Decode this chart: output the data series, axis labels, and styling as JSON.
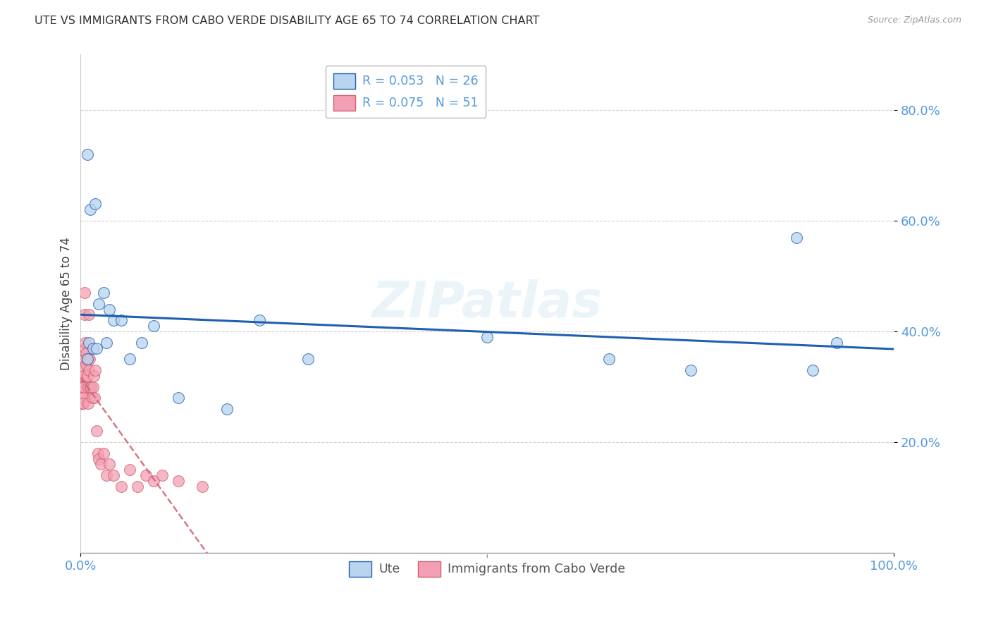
{
  "title": "UTE VS IMMIGRANTS FROM CABO VERDE DISABILITY AGE 65 TO 74 CORRELATION CHART",
  "source": "Source: ZipAtlas.com",
  "ylabel": "Disability Age 65 to 74",
  "legend1_label": "R = 0.053   N = 26",
  "legend2_label": "R = 0.075   N = 51",
  "legend_bottom1": "Ute",
  "legend_bottom2": "Immigrants from Cabo Verde",
  "ute_color": "#b8d4ee",
  "cabo_color": "#f4a0b4",
  "ute_line_color": "#2060b0",
  "cabo_line_color": "#d06070",
  "watermark": "ZIPatlas",
  "ute_x": [
    0.008,
    0.012,
    0.018,
    0.022,
    0.028,
    0.032,
    0.035,
    0.04,
    0.05,
    0.06,
    0.075,
    0.09,
    0.12,
    0.18,
    0.22,
    0.28,
    0.5,
    0.65,
    0.75,
    0.88,
    0.9,
    0.93,
    0.008,
    0.01,
    0.015,
    0.02
  ],
  "ute_y": [
    0.72,
    0.62,
    0.63,
    0.45,
    0.47,
    0.38,
    0.44,
    0.42,
    0.42,
    0.35,
    0.38,
    0.41,
    0.28,
    0.26,
    0.42,
    0.35,
    0.39,
    0.35,
    0.33,
    0.57,
    0.33,
    0.38,
    0.35,
    0.38,
    0.37,
    0.37
  ],
  "cabo_x": [
    0.001,
    0.001,
    0.001,
    0.002,
    0.002,
    0.002,
    0.002,
    0.003,
    0.003,
    0.003,
    0.003,
    0.004,
    0.004,
    0.004,
    0.005,
    0.005,
    0.005,
    0.006,
    0.006,
    0.007,
    0.007,
    0.008,
    0.008,
    0.009,
    0.009,
    0.01,
    0.01,
    0.011,
    0.012,
    0.013,
    0.014,
    0.015,
    0.016,
    0.017,
    0.018,
    0.02,
    0.021,
    0.022,
    0.025,
    0.028,
    0.032,
    0.035,
    0.04,
    0.05,
    0.06,
    0.07,
    0.08,
    0.09,
    0.1,
    0.12,
    0.15
  ],
  "cabo_y": [
    0.3,
    0.27,
    0.32,
    0.28,
    0.3,
    0.27,
    0.29,
    0.33,
    0.3,
    0.28,
    0.27,
    0.35,
    0.32,
    0.3,
    0.43,
    0.47,
    0.35,
    0.37,
    0.38,
    0.34,
    0.36,
    0.32,
    0.35,
    0.3,
    0.27,
    0.43,
    0.33,
    0.35,
    0.3,
    0.3,
    0.28,
    0.3,
    0.32,
    0.28,
    0.33,
    0.22,
    0.18,
    0.17,
    0.16,
    0.18,
    0.14,
    0.16,
    0.14,
    0.12,
    0.15,
    0.12,
    0.14,
    0.13,
    0.14,
    0.13,
    0.12
  ],
  "xlim": [
    0.0,
    1.0
  ],
  "ylim": [
    0.0,
    0.9
  ],
  "yticks": [
    0.2,
    0.4,
    0.6,
    0.8
  ],
  "ytick_labels": [
    "20.0%",
    "40.0%",
    "60.0%",
    "80.0%"
  ],
  "xtick_labels": [
    "0.0%",
    "100.0%"
  ],
  "background_color": "#ffffff",
  "grid_color": "#cccccc",
  "tick_color": "#5599dd",
  "label_color": "#444444"
}
